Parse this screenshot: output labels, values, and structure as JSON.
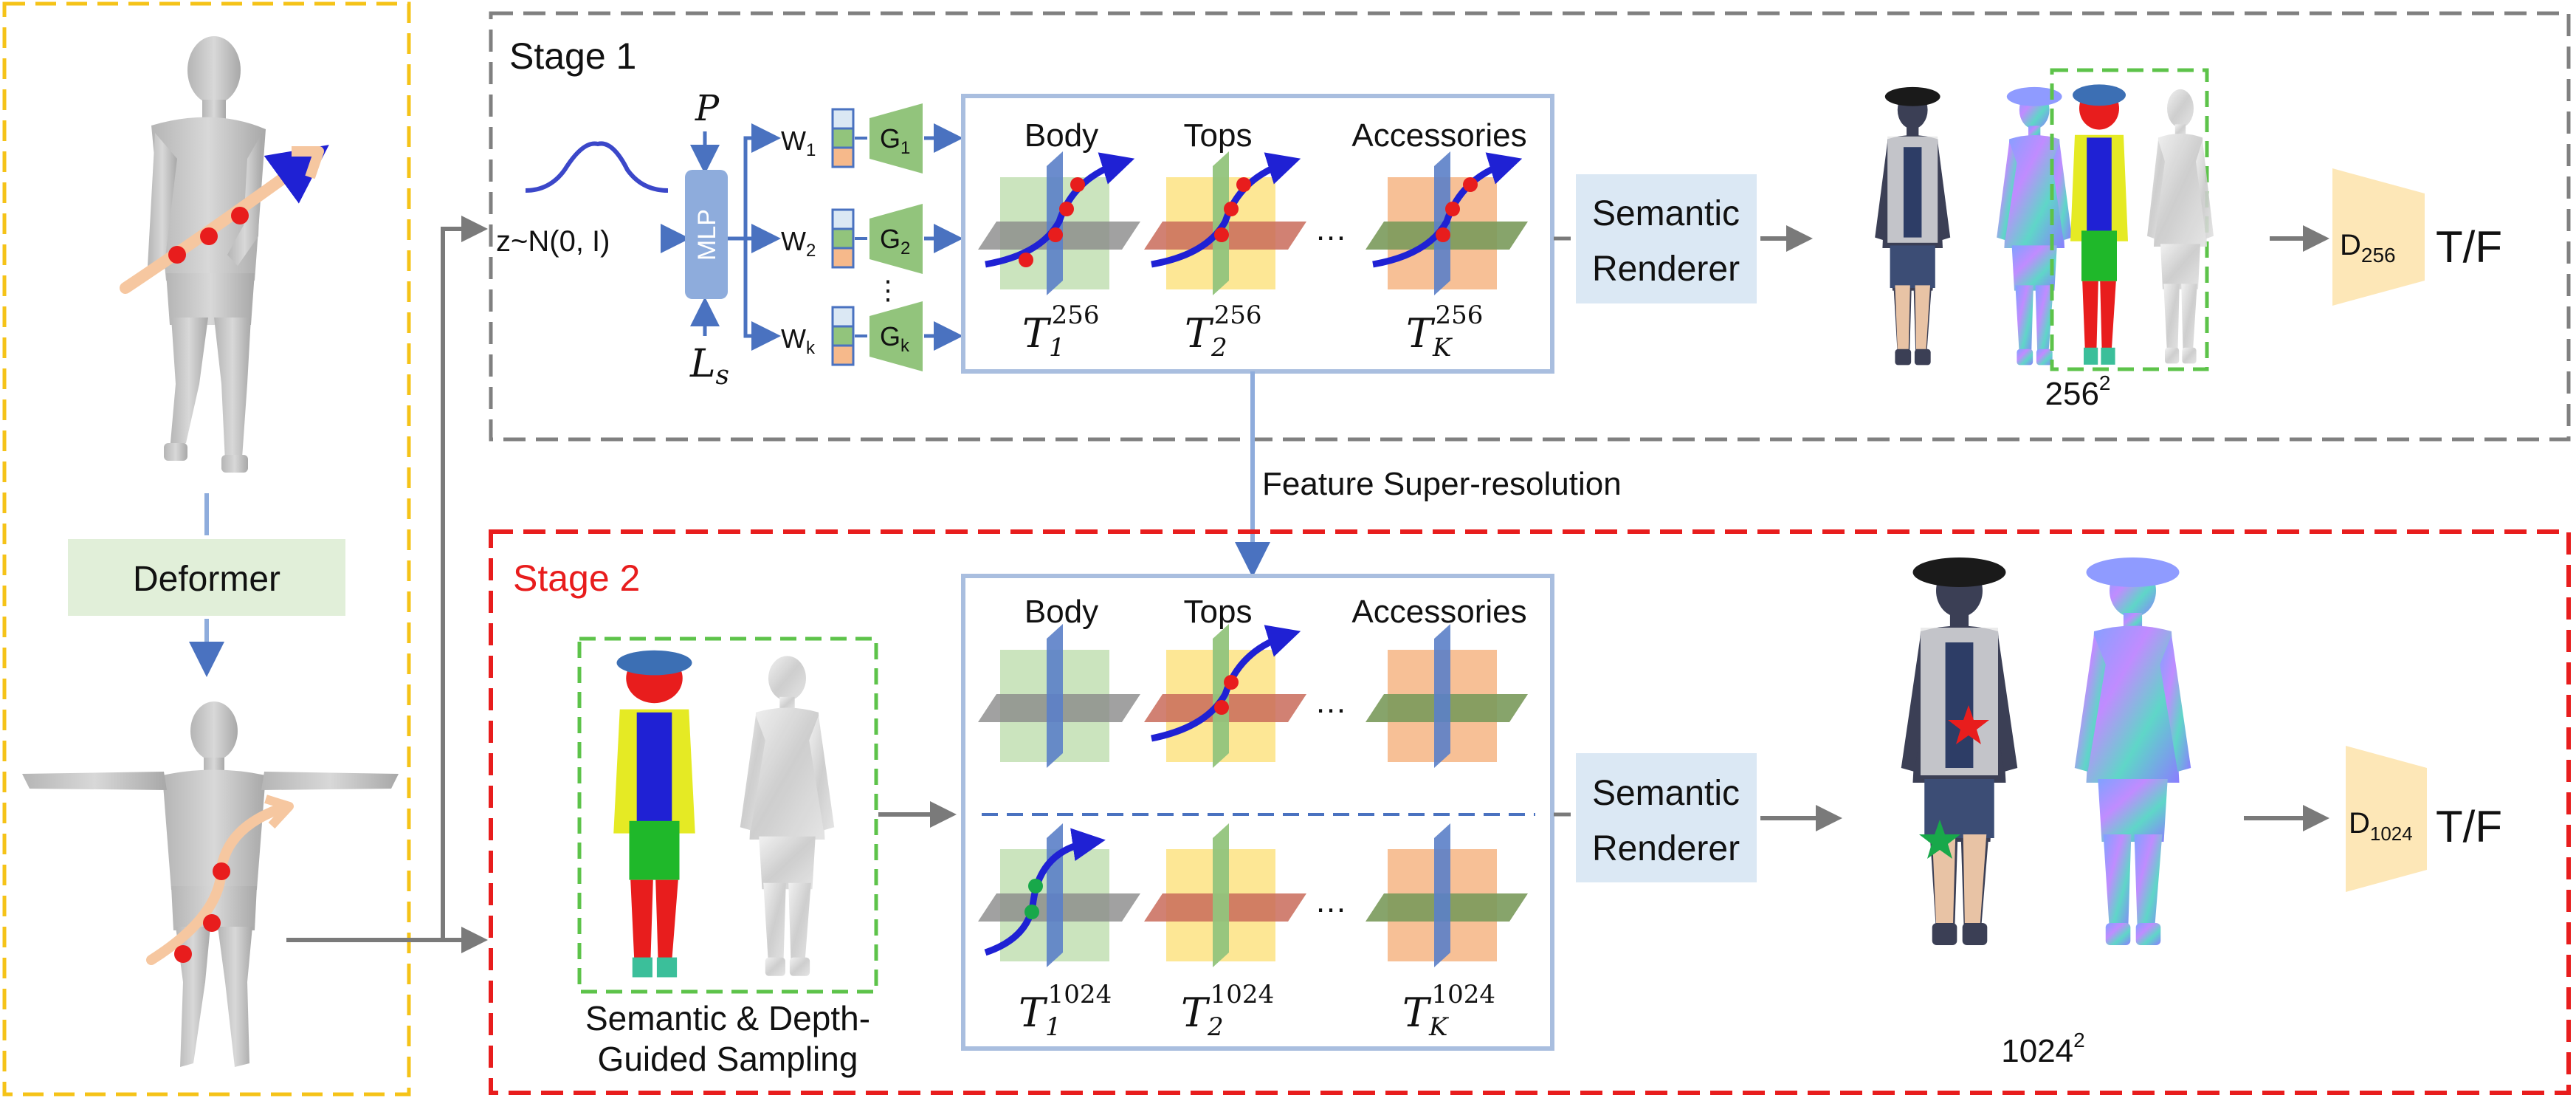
{
  "deformer": {
    "label": "Deformer"
  },
  "stage1": {
    "title": "Stage 1",
    "noise_label": "z~N(0, I)",
    "pose_label": "P",
    "ls_label": "L",
    "ls_sub": "s",
    "mlp_label": "MLP",
    "w_labels": [
      "W",
      "W",
      "W"
    ],
    "w_subs": [
      "1",
      "2",
      "k"
    ],
    "g_labels": [
      "G",
      "G",
      "G"
    ],
    "g_subs": [
      "1",
      "2",
      "k"
    ],
    "vdots": "⋮",
    "part_labels": [
      "Body",
      "Tops",
      "Accessories"
    ],
    "ellipsis": "…",
    "t_labels": [
      "T",
      "T",
      "T"
    ],
    "t_subs": [
      "1",
      "2",
      "K"
    ],
    "t_sups": [
      "256",
      "256",
      "256"
    ],
    "renderer_line1": "Semantic",
    "renderer_line2": "Renderer",
    "resolution": "256",
    "resolution_sup": "2",
    "disc_label": "D",
    "disc_sub": "256",
    "tf_label": "T/F"
  },
  "super_resolution_label": "Feature Super-resolution",
  "stage2": {
    "title": "Stage 2",
    "part_labels": [
      "Body",
      "Tops",
      "Accessories"
    ],
    "ellipsis": "…",
    "t_labels": [
      "T",
      "T",
      "T"
    ],
    "t_subs": [
      "1",
      "2",
      "K"
    ],
    "t_sups": [
      "1024",
      "1024",
      "1024"
    ],
    "sampling_line1": "Semantic & Depth-",
    "sampling_line2": "Guided Sampling",
    "renderer_line1": "Semantic",
    "renderer_line2": "Renderer",
    "resolution": "1024",
    "resolution_sup": "2",
    "disc_label": "D",
    "disc_sub": "1024",
    "tf_label": "T/F"
  },
  "colors": {
    "deformer_border": "#f5c318",
    "stage1_border": "#808080",
    "stage2_border": "#e81d1d",
    "stage2_title": "#e81d1d",
    "triplane_border": "#a9bedf",
    "renderer_fill": "#dbe8f4",
    "deformer_box": "#e1efd9",
    "disc_fill": "#fde7b7",
    "arrow_blue": "#4a72c0",
    "arrow_gray": "#7a7a7a",
    "mlp_fill": "#8eacdc",
    "g_fill": "#92c47c",
    "curve_blue": "#1f21d4",
    "dot_red": "#e81d1d",
    "plane_green": "#c2dfb3",
    "plane_blue": "#5b80c8",
    "plane_yellow": "#fde48a",
    "plane_orange": "#f6b98b",
    "star_green": "#18a84a"
  }
}
